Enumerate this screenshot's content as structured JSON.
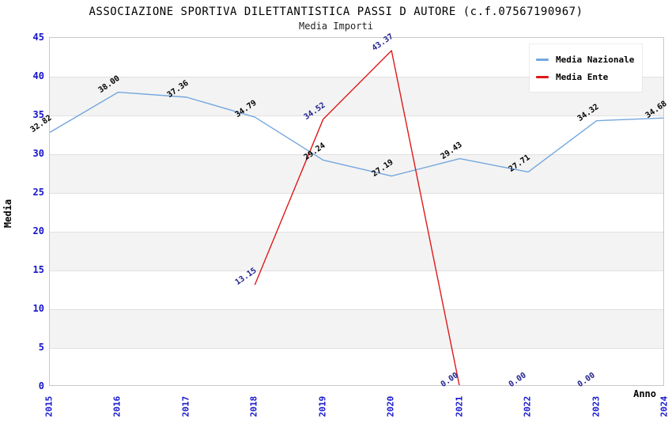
{
  "title": "ASSOCIAZIONE SPORTIVA DILETTANTISTICA PASSI D AUTORE (c.f.07567190967)",
  "subtitle": "Media Importi",
  "ylabel": "Media",
  "xlabel": "Anno",
  "legend": [
    {
      "label": "Media Nazionale",
      "color": "#74a7dd"
    },
    {
      "label": "Media Ente",
      "color": "#e01818"
    }
  ],
  "chart_data": {
    "type": "line",
    "title": "ASSOCIAZIONE SPORTIVA DILETTANTISTICA PASSI D AUTORE (c.f.07567190967)",
    "subtitle": "Media Importi",
    "xlabel": "Anno",
    "ylabel": "Media",
    "categories": [
      "2015",
      "2016",
      "2017",
      "2018",
      "2019",
      "2020",
      "2021",
      "2022",
      "2023",
      "2024"
    ],
    "series": [
      {
        "name": "Media Nazionale",
        "color": "#74a7dd",
        "label_color": "#000000",
        "values": [
          32.82,
          38.0,
          37.36,
          34.79,
          29.24,
          27.19,
          29.43,
          27.71,
          34.32,
          34.68
        ]
      },
      {
        "name": "Media Ente",
        "color": "#e01818",
        "label_color": "#1f1f8f",
        "values": [
          null,
          null,
          null,
          13.15,
          34.52,
          43.37,
          0.0,
          0.0,
          0.0,
          null
        ]
      }
    ],
    "ylim": [
      0,
      45
    ],
    "ytick_step": 5,
    "grid": true,
    "band_color": "#f3f3f3",
    "gridline_color": "#e0e0e0",
    "tick_color": "#1414cc",
    "legend_position": "top-right"
  }
}
